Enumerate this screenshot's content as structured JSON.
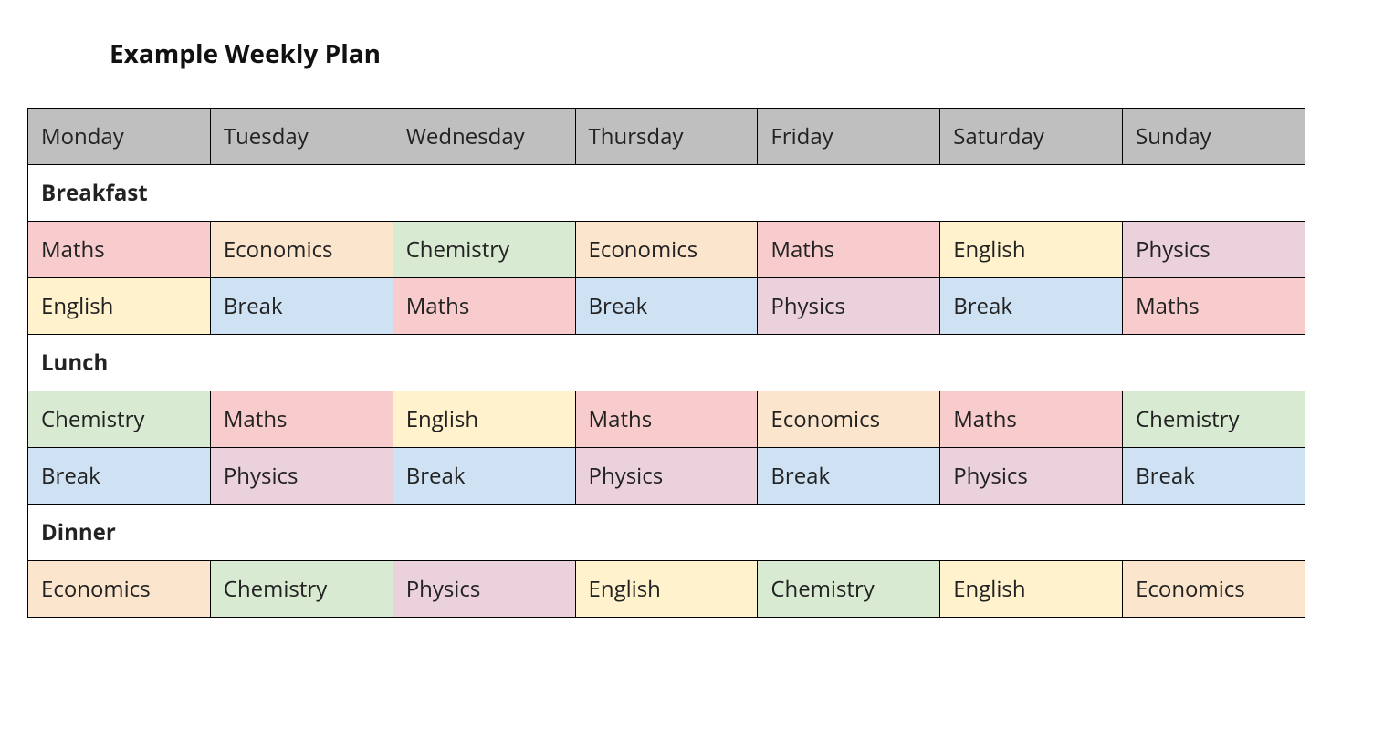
{
  "title": "Example Weekly Plan",
  "title_fontsize": 28,
  "title_fontweight": 700,
  "colors": {
    "header_bg": "#bfbfbf",
    "text": "#222222",
    "border": "#000000",
    "section_bg": "#ffffff",
    "Maths": "#f8cccd",
    "Economics": "#fce5cd",
    "Chemistry": "#d9ead3",
    "English": "#fff2cc",
    "Break": "#cfe2f3",
    "Physics": "#ead1dc"
  },
  "days": [
    "Monday",
    "Tuesday",
    "Wednesday",
    "Thursday",
    "Friday",
    "Saturday",
    "Sunday"
  ],
  "sections": [
    {
      "label": "Breakfast",
      "rows": [
        [
          "Maths",
          "Economics",
          "Chemistry",
          "Economics",
          "Maths",
          "English",
          "Physics"
        ],
        [
          "English",
          "Break",
          "Maths",
          "Break",
          "Physics",
          "Break",
          "Maths"
        ]
      ]
    },
    {
      "label": "Lunch",
      "rows": [
        [
          "Chemistry",
          "Maths",
          "English",
          "Maths",
          "Economics",
          "Maths",
          "Chemistry"
        ],
        [
          "Break",
          "Physics",
          "Break",
          "Physics",
          "Break",
          "Physics",
          "Break"
        ]
      ]
    },
    {
      "label": "Dinner",
      "rows": [
        [
          "Economics",
          "Chemistry",
          "Physics",
          "English",
          "Chemistry",
          "English",
          "Economics"
        ]
      ]
    }
  ],
  "table": {
    "type": "table",
    "col_count": 7,
    "cell_fontsize": 24,
    "cell_fontweight": 400,
    "section_fontweight": 700,
    "border_width": 1.5,
    "cell_padding_v": 14,
    "cell_padding_h": 14
  }
}
